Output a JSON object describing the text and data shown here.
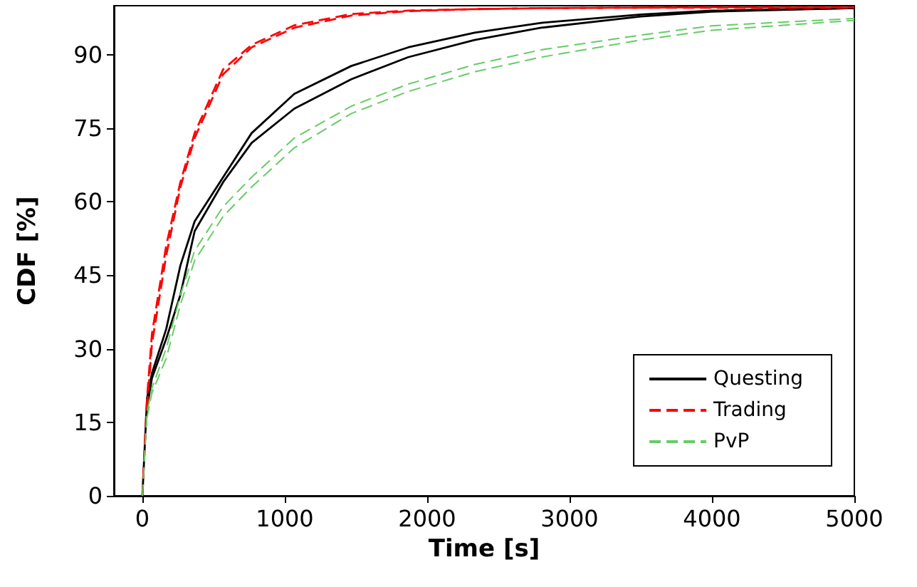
{
  "chart_data": {
    "type": "line",
    "xlabel": "Time [s]",
    "ylabel": "CDF [%]",
    "xlim": [
      -200,
      5000
    ],
    "xticks": [
      0,
      1000,
      2000,
      3000,
      4000,
      5000
    ],
    "ylim": [
      0,
      100
    ],
    "yticks": [
      0,
      15,
      30,
      45,
      60,
      75,
      90
    ],
    "grid": false,
    "legend": "bottom right",
    "x": [
      0,
      33,
      67,
      167,
      267,
      367,
      567,
      767,
      1067,
      1467,
      1867,
      2333,
      2800,
      3500,
      4000,
      5000
    ],
    "series": [
      {
        "name": "Questing",
        "color": "#000000",
        "line_style": "solid",
        "values": [
          0,
          20,
          25,
          34,
          47,
          56,
          65,
          74,
          82,
          87.7,
          91.5,
          94.5,
          96.5,
          98.2,
          99,
          99.5
        ]
      },
      {
        "color": "#000000",
        "line_style": "solid",
        "values": [
          null,
          18,
          24,
          32,
          41,
          54,
          64,
          72,
          79,
          85,
          89.5,
          93,
          95.5,
          97.8,
          98.8,
          99.5
        ]
      },
      {
        "name": "Trading",
        "color": "#ff0000",
        "line_style": "dashed",
        "values": [
          0,
          20,
          33,
          51,
          64,
          74,
          87,
          92,
          96,
          98.3,
          99,
          99.3,
          99.5,
          99.6,
          99.7,
          99.7
        ]
      },
      {
        "color": "#ff0000",
        "line_style": "dashed",
        "values": [
          null,
          18,
          31,
          49,
          63,
          73,
          86,
          91.5,
          95.5,
          98,
          98.9,
          99.3,
          99.5,
          99.6,
          99.6,
          99.6
        ]
      },
      {
        "name": "PvP",
        "color": "#66cc66",
        "line_style": "dashed",
        "values": [
          0,
          17,
          22,
          30,
          41,
          50,
          59,
          65,
          73,
          79.5,
          84,
          88,
          91,
          94,
          95.9,
          97.4
        ]
      },
      {
        "color": "#66cc66",
        "line_style": "dashed",
        "values": [
          null,
          16,
          21,
          28,
          39,
          48,
          57,
          63,
          71,
          78,
          82.5,
          86.5,
          89.5,
          93,
          95,
          97
        ]
      }
    ]
  }
}
